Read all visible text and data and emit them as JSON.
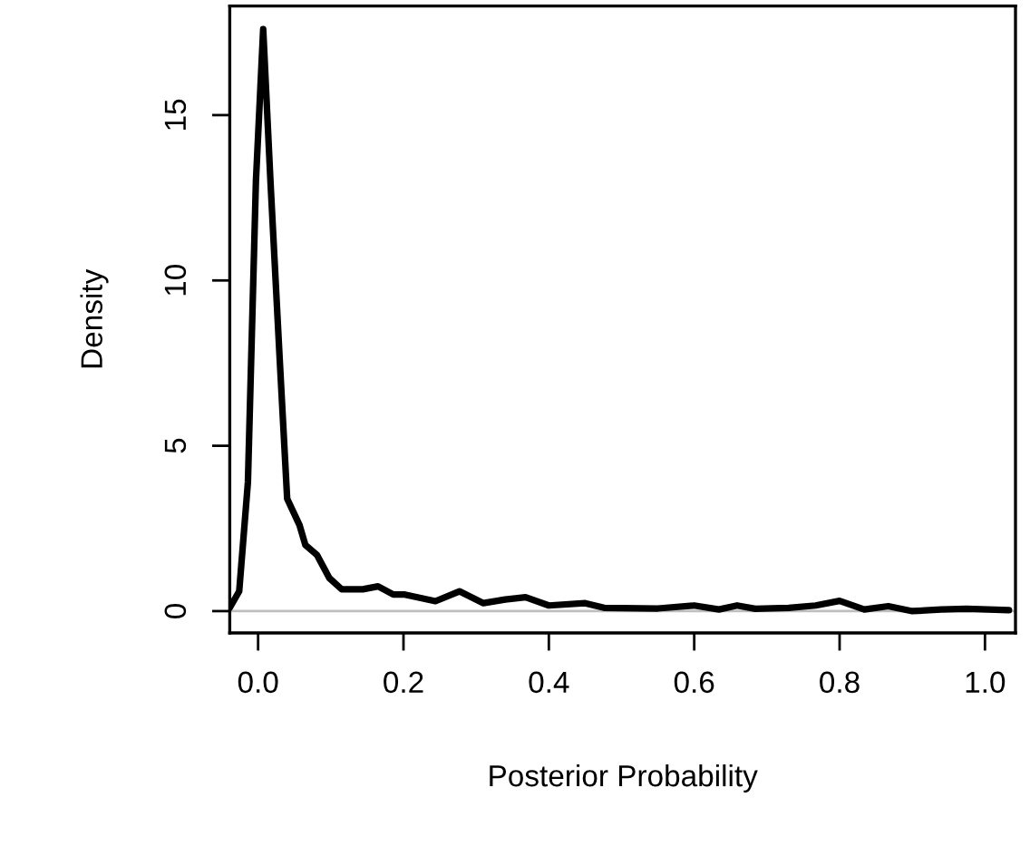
{
  "chart_data": {
    "type": "line",
    "xlabel": "Posterior Probability",
    "ylabel": "Density",
    "series": [
      {
        "color": "#000000",
        "x": [
          -0.039,
          -0.026,
          -0.014,
          -0.003,
          0.007,
          0.017,
          0.03,
          0.04,
          0.057,
          0.065,
          0.081,
          0.098,
          0.115,
          0.144,
          0.165,
          0.186,
          0.202,
          0.244,
          0.277,
          0.31,
          0.34,
          0.368,
          0.4,
          0.45,
          0.476,
          0.55,
          0.6,
          0.634,
          0.659,
          0.684,
          0.73,
          0.767,
          0.8,
          0.834,
          0.867,
          0.9,
          0.94,
          0.975,
          1.033
        ],
        "values": [
          0.1,
          0.6,
          3.9,
          13.0,
          17.6,
          13.0,
          7.5,
          3.4,
          2.6,
          2.0,
          1.7,
          1.0,
          0.66,
          0.66,
          0.75,
          0.5,
          0.5,
          0.3,
          0.6,
          0.24,
          0.35,
          0.42,
          0.17,
          0.24,
          0.1,
          0.08,
          0.17,
          0.05,
          0.17,
          0.07,
          0.1,
          0.17,
          0.31,
          0.05,
          0.15,
          0.0,
          0.05,
          0.07,
          0.03
        ]
      }
    ],
    "xlim": [
      -0.039,
      1.042
    ],
    "ylim": [
      -0.66,
      18.3
    ],
    "xticks": [
      {
        "value": 0,
        "label": "0.0"
      },
      {
        "value": 0.2,
        "label": "0.2"
      },
      {
        "value": 0.4,
        "label": "0.4"
      },
      {
        "value": 0.6,
        "label": "0.6"
      },
      {
        "value": 0.8,
        "label": "0.8"
      },
      {
        "value": 1,
        "label": "1.0"
      }
    ],
    "yticks": [
      0,
      5,
      10,
      15
    ],
    "ref_lines": [
      {
        "axis": "y",
        "value": 0,
        "color": "#bebebe"
      }
    ],
    "grid": false,
    "legend": false,
    "marker": "none",
    "line_style": "solid"
  }
}
